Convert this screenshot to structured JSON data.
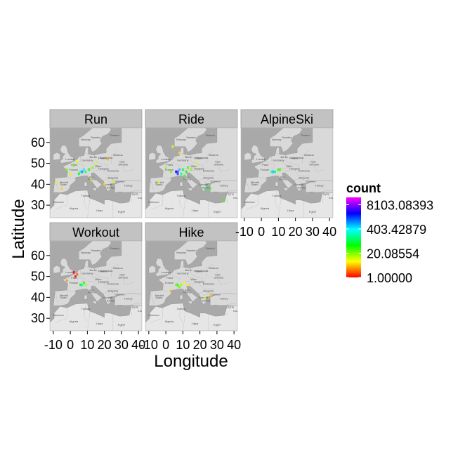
{
  "chart_data": {
    "type": "heatmap",
    "title": "",
    "xlabel": "Longitude",
    "ylabel": "Latitude",
    "xlim": [
      -12,
      42
    ],
    "ylim": [
      24,
      67
    ],
    "x_ticks": [
      -10,
      0,
      10,
      20,
      30,
      40
    ],
    "x_tick_labels": [
      "-10",
      "0",
      "10",
      "20",
      "30",
      "40"
    ],
    "y_ticks": [
      30,
      40,
      50,
      60
    ],
    "y_tick_labels": [
      "30",
      "40",
      "50",
      "60"
    ],
    "basemap": "map tiles of Europe and North Africa",
    "legend": {
      "title": "count",
      "scale": "log",
      "min": 1.0,
      "max": 20000,
      "breaks": [
        1.0,
        20.08554,
        403.42879,
        8103.08393
      ],
      "break_labels": [
        "1.00000",
        "20.08554",
        "403.42879",
        "8103.08393"
      ],
      "colors": [
        "#ff0000",
        "#ff8000",
        "#ffff00",
        "#80ff00",
        "#00ff00",
        "#00ff80",
        "#00ffff",
        "#0080ff",
        "#0000ff",
        "#8000ff",
        "#ff00ff"
      ]
    },
    "panels": [
      {
        "name": "Run",
        "points": [
          {
            "lon": -2,
            "lat": 47,
            "count": 20
          },
          {
            "lon": 0,
            "lat": 45,
            "count": 10
          },
          {
            "lon": 2,
            "lat": 49,
            "count": 30
          },
          {
            "lon": 5,
            "lat": 45,
            "count": 60
          },
          {
            "lon": 6,
            "lat": 46,
            "count": 300
          },
          {
            "lon": 7,
            "lat": 46,
            "count": 900
          },
          {
            "lon": 8,
            "lat": 47,
            "count": 400
          },
          {
            "lon": 9,
            "lat": 46,
            "count": 150
          },
          {
            "lon": 11,
            "lat": 47,
            "count": 40
          },
          {
            "lon": 13,
            "lat": 48,
            "count": 20
          },
          {
            "lon": 4,
            "lat": 51,
            "count": 8
          },
          {
            "lon": -5,
            "lat": 38,
            "count": 5
          },
          {
            "lon": 12,
            "lat": 42,
            "count": 15
          },
          {
            "lon": 15,
            "lat": 50,
            "count": 10
          },
          {
            "lon": 20,
            "lat": 40,
            "count": 6
          },
          {
            "lon": 25,
            "lat": 41,
            "count": 12
          },
          {
            "lon": 22,
            "lat": 52,
            "count": 4
          },
          {
            "lon": -8,
            "lat": 41,
            "count": 6
          }
        ]
      },
      {
        "name": "Ride",
        "points": [
          {
            "lon": 4,
            "lat": 58,
            "count": 8
          },
          {
            "lon": 8,
            "lat": 55,
            "count": 6
          },
          {
            "lon": 0,
            "lat": 48,
            "count": 15
          },
          {
            "lon": 3,
            "lat": 46,
            "count": 25
          },
          {
            "lon": 6,
            "lat": 46,
            "count": 3000
          },
          {
            "lon": 7,
            "lat": 46,
            "count": 9000
          },
          {
            "lon": 7,
            "lat": 45,
            "count": 1500
          },
          {
            "lon": 8,
            "lat": 47,
            "count": 600
          },
          {
            "lon": 9,
            "lat": 45,
            "count": 200
          },
          {
            "lon": 10,
            "lat": 47,
            "count": 80
          },
          {
            "lon": 12,
            "lat": 46,
            "count": 50
          },
          {
            "lon": 13,
            "lat": 48,
            "count": 30
          },
          {
            "lon": 11,
            "lat": 44,
            "count": 40
          },
          {
            "lon": 15,
            "lat": 47,
            "count": 20
          },
          {
            "lon": 18,
            "lat": 50,
            "count": 10
          },
          {
            "lon": 23,
            "lat": 38,
            "count": 120
          },
          {
            "lon": 26,
            "lat": 38,
            "count": 40
          },
          {
            "lon": 34,
            "lat": 32,
            "count": 30
          },
          {
            "lon": -4,
            "lat": 41,
            "count": 10
          }
        ]
      },
      {
        "name": "AlpineSki",
        "points": [
          {
            "lon": 6,
            "lat": 46,
            "count": 250
          },
          {
            "lon": 7,
            "lat": 46,
            "count": 600
          },
          {
            "lon": 8,
            "lat": 46,
            "count": 150
          },
          {
            "lon": 10,
            "lat": 47,
            "count": 40
          },
          {
            "lon": 11,
            "lat": 47,
            "count": 30
          }
        ]
      },
      {
        "name": "Workout",
        "points": [
          {
            "lon": 2,
            "lat": 52,
            "count": 1
          },
          {
            "lon": 4,
            "lat": 51,
            "count": 2
          },
          {
            "lon": 3,
            "lat": 50,
            "count": 1
          },
          {
            "lon": 6,
            "lat": 46,
            "count": 60
          },
          {
            "lon": 7,
            "lat": 46,
            "count": 250
          },
          {
            "lon": 8,
            "lat": 47,
            "count": 40
          },
          {
            "lon": 9,
            "lat": 46,
            "count": 15
          },
          {
            "lon": -2,
            "lat": 48,
            "count": 3
          }
        ]
      },
      {
        "name": "Hike",
        "points": [
          {
            "lon": 6,
            "lat": 46,
            "count": 20
          },
          {
            "lon": 7,
            "lat": 46,
            "count": 40
          },
          {
            "lon": 8,
            "lat": 45,
            "count": 25
          },
          {
            "lon": 9,
            "lat": 46,
            "count": 15
          },
          {
            "lon": 11,
            "lat": 47,
            "count": 8
          },
          {
            "lon": 13,
            "lat": 46,
            "count": 6
          },
          {
            "lon": 23,
            "lat": 40,
            "count": 10
          },
          {
            "lon": 26,
            "lat": 41,
            "count": 5
          },
          {
            "lon": 3,
            "lat": 43,
            "count": 4
          }
        ]
      }
    ]
  }
}
